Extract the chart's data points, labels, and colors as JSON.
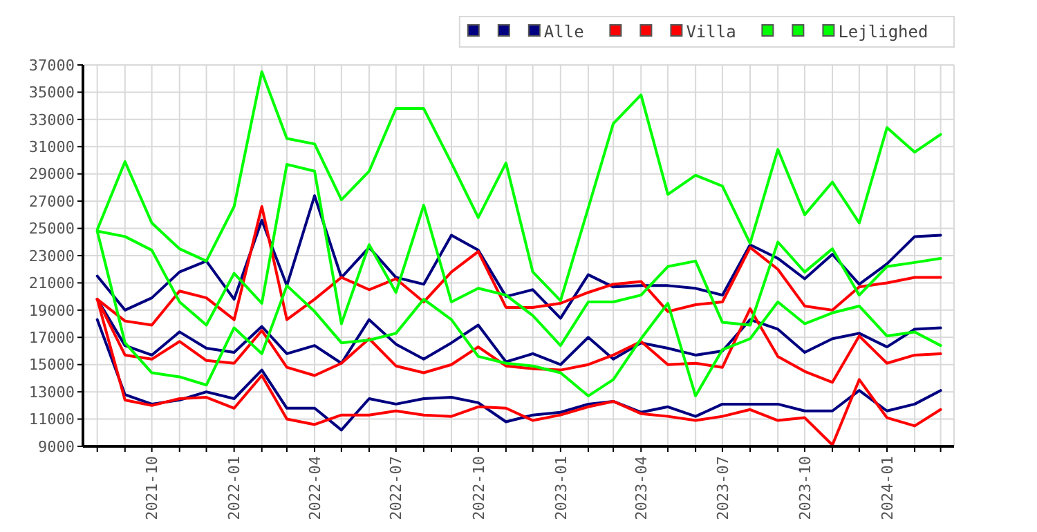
{
  "chart_data": {
    "type": "line",
    "x": [
      "2021-08",
      "2021-09",
      "2021-10",
      "2021-11",
      "2021-12",
      "2022-01",
      "2022-02",
      "2022-03",
      "2022-04",
      "2022-05",
      "2022-06",
      "2022-07",
      "2022-08",
      "2022-09",
      "2022-10",
      "2022-11",
      "2022-12",
      "2023-01",
      "2023-02",
      "2023-03",
      "2023-04",
      "2023-05",
      "2023-06",
      "2023-07",
      "2023-08",
      "2023-09",
      "2023-10",
      "2023-11",
      "2023-12",
      "2024-01",
      "2024-02",
      "2024-03"
    ],
    "series": [
      {
        "color": "#000080",
        "values": [
          18300,
          12800,
          12100,
          12400,
          13000,
          12500,
          14600,
          11800,
          11800,
          10200,
          12500,
          12100,
          12500,
          12600,
          12200,
          10800,
          11300,
          11500,
          12100,
          12300,
          11500,
          11900,
          11200,
          12100,
          12100,
          12100,
          11600,
          11600,
          13100,
          11600,
          12100,
          13100
        ]
      },
      {
        "color": "#000080",
        "values": [
          19800,
          16400,
          15700,
          17400,
          16200,
          15900,
          17800,
          15800,
          16400,
          15100,
          18300,
          16500,
          15400,
          16600,
          17900,
          15200,
          15800,
          15000,
          17000,
          15400,
          16600,
          16200,
          15700,
          16000,
          18300,
          17600,
          15900,
          16900,
          17300,
          16300,
          17600,
          17700
        ]
      },
      {
        "name": "Alle",
        "color": "#000080",
        "values": [
          21500,
          19000,
          19900,
          21800,
          22600,
          19800,
          25600,
          20800,
          27400,
          21400,
          23600,
          21400,
          20900,
          24500,
          23400,
          20000,
          20500,
          18400,
          21600,
          20700,
          20800,
          20800,
          20600,
          20100,
          23800,
          22800,
          21300,
          23100,
          20900,
          22400,
          24400,
          24500
        ]
      },
      {
        "color": "#ff0000",
        "values": [
          19800,
          12400,
          12000,
          12500,
          12600,
          11800,
          14200,
          11000,
          10600,
          11300,
          11300,
          11600,
          11300,
          11200,
          11900,
          11800,
          10900,
          11300,
          11900,
          12300,
          11400,
          11200,
          10900,
          11200,
          11700,
          10900,
          11100,
          9100,
          13900,
          11100,
          10500,
          11700
        ]
      },
      {
        "color": "#ff0000",
        "values": [
          19800,
          15700,
          15400,
          16700,
          15300,
          15100,
          17500,
          14800,
          14200,
          15100,
          16900,
          14900,
          14400,
          15000,
          16300,
          14900,
          14700,
          14600,
          15000,
          15700,
          16700,
          15000,
          15100,
          14800,
          19100,
          15600,
          14500,
          13700,
          17100,
          15100,
          15700,
          15800
        ]
      },
      {
        "name": "Villa",
        "color": "#ff0000",
        "values": [
          19800,
          18200,
          17900,
          20400,
          19900,
          18300,
          26600,
          18300,
          19800,
          21400,
          20500,
          21300,
          19600,
          21800,
          23300,
          19200,
          19200,
          19500,
          20300,
          20900,
          21100,
          18900,
          19400,
          19600,
          23600,
          22000,
          19300,
          19000,
          20700,
          21000,
          21400,
          21400
        ]
      },
      {
        "color": "#00ff00",
        "values": [
          24800,
          16600,
          14400,
          14100,
          13500,
          17700,
          15800,
          20800,
          18900,
          16600,
          16800,
          17300,
          19800,
          18300,
          15600,
          15100,
          14900,
          14400,
          12700,
          13900,
          16900,
          19500,
          12700,
          16100,
          16900,
          19600,
          18000,
          18800,
          19300,
          17100,
          17400,
          16400
        ]
      },
      {
        "color": "#00ff00",
        "values": [
          24800,
          24400,
          23400,
          19600,
          17900,
          21700,
          19500,
          29700,
          29200,
          18000,
          23800,
          20300,
          26700,
          19600,
          20600,
          20100,
          18600,
          16400,
          19600,
          19600,
          20100,
          22200,
          22600,
          18100,
          17900,
          24000,
          21800,
          23500,
          20100,
          22200,
          22500,
          22800
        ]
      },
      {
        "name": "Lejlighed",
        "color": "#00ff00",
        "values": [
          24900,
          29900,
          25400,
          23500,
          22600,
          26600,
          36500,
          31600,
          31200,
          27100,
          29200,
          33800,
          33800,
          29800,
          25800,
          29800,
          21800,
          19700,
          26500,
          32700,
          34800,
          27500,
          28900,
          28100,
          23900,
          30800,
          26000,
          28400,
          25400,
          32400,
          30600,
          31900
        ]
      }
    ],
    "xlim": [
      "2021-07-16",
      "2024-03-16"
    ],
    "xticks": [
      {
        "value": "2021-08",
        "label": null
      },
      {
        "value": "2021-09",
        "label": null
      },
      "2021-10",
      {
        "value": "2021-11",
        "label": null
      },
      {
        "value": "2021-12",
        "label": null
      },
      "2022-01",
      {
        "value": "2022-02",
        "label": null
      },
      {
        "value": "2022-03",
        "label": null
      },
      "2022-04",
      {
        "value": "2022-05",
        "label": null
      },
      {
        "value": "2022-06",
        "label": null
      },
      "2022-07",
      {
        "value": "2022-08",
        "label": null
      },
      {
        "value": "2022-09",
        "label": null
      },
      "2022-10",
      {
        "value": "2022-11",
        "label": null
      },
      {
        "value": "2022-12",
        "label": null
      },
      "2023-01",
      {
        "value": "2023-02",
        "label": null
      },
      {
        "value": "2023-03",
        "label": null
      },
      "2023-04",
      {
        "value": "2023-05",
        "label": null
      },
      {
        "value": "2023-06",
        "label": null
      },
      "2023-07",
      {
        "value": "2023-08",
        "label": null
      },
      {
        "value": "2023-09",
        "label": null
      },
      "2023-10",
      {
        "value": "2023-11",
        "label": null
      },
      {
        "value": "2023-12",
        "label": null
      },
      "2024-01",
      {
        "value": "2024-02",
        "label": null
      },
      {
        "value": "2024-03",
        "label": null
      }
    ],
    "ylim": [
      9000,
      37000
    ],
    "yticks": [
      9000,
      11000,
      13000,
      15000,
      17000,
      19000,
      21000,
      23000,
      25000,
      27000,
      29000,
      31000,
      33000,
      35000,
      37000
    ],
    "grid": true,
    "legend": "top right",
    "marker": "none",
    "line_style": "solid"
  }
}
